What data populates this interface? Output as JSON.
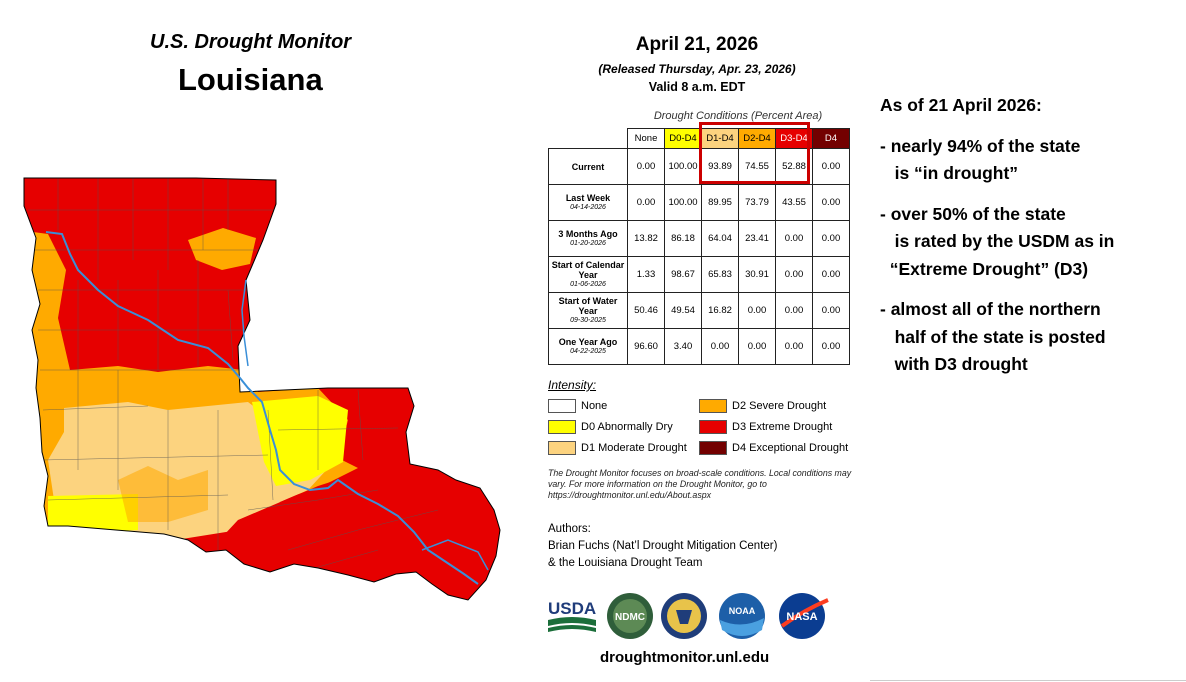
{
  "header": {
    "source": "U.S. Drought Monitor",
    "state": "Louisiana"
  },
  "release": {
    "date": "April 21, 2026",
    "released": "(Released Thursday, Apr. 23, 2026)",
    "valid": "Valid 8 a.m. EDT"
  },
  "table": {
    "title": "Drought Conditions (Percent Area)",
    "columns": [
      "None",
      "D0-D4",
      "D1-D4",
      "D2-D4",
      "D3-D4",
      "D4"
    ],
    "column_colors": [
      "#ffffff",
      "#ffff00",
      "#fcd37f",
      "#ffaa00",
      "#e60000",
      "#730000"
    ],
    "rows": [
      {
        "label": "Current",
        "date": "",
        "values": [
          "0.00",
          "100.00",
          "93.89",
          "74.55",
          "52.88",
          "0.00"
        ]
      },
      {
        "label": "Last Week",
        "date": "04-14-2026",
        "values": [
          "0.00",
          "100.00",
          "89.95",
          "73.79",
          "43.55",
          "0.00"
        ]
      },
      {
        "label": "3 Months Ago",
        "date": "01-20-2026",
        "values": [
          "13.82",
          "86.18",
          "64.04",
          "23.41",
          "0.00",
          "0.00"
        ]
      },
      {
        "label": "Start of Calendar Year",
        "date": "01-06-2026",
        "values": [
          "1.33",
          "98.67",
          "65.83",
          "30.91",
          "0.00",
          "0.00"
        ]
      },
      {
        "label": "Start of Water Year",
        "date": "09-30-2025",
        "values": [
          "50.46",
          "49.54",
          "16.82",
          "0.00",
          "0.00",
          "0.00"
        ]
      },
      {
        "label": "One Year Ago",
        "date": "04-22-2025",
        "values": [
          "96.60",
          "3.40",
          "0.00",
          "0.00",
          "0.00",
          "0.00"
        ]
      }
    ]
  },
  "legend": {
    "title": "Intensity:",
    "items": [
      {
        "label": "None",
        "color": "#ffffff"
      },
      {
        "label": "D0 Abnormally Dry",
        "color": "#ffff00"
      },
      {
        "label": "D1 Moderate Drought",
        "color": "#fcd37f"
      },
      {
        "label": "D2 Severe Drought",
        "color": "#ffaa00"
      },
      {
        "label": "D3 Extreme Drought",
        "color": "#e60000"
      },
      {
        "label": "D4 Exceptional Drought",
        "color": "#730000"
      }
    ]
  },
  "note": "The Drought Monitor focuses on broad-scale conditions. Local conditions may vary. For more information on the Drought Monitor, go to https://droughtmonitor.unl.edu/About.aspx",
  "authors": {
    "label": "Authors:",
    "line1": "Brian Fuchs (Nat’l Drought Mitigation Center)",
    "line2": "& the Louisiana Drought Team"
  },
  "logos": [
    "USDA",
    "NDMC",
    "DOC",
    "NOAA",
    "NASA"
  ],
  "url": "droughtmonitor.unl.edu",
  "notes": {
    "heading": "As of 21 April 2026:",
    "items": [
      {
        "line1": "- nearly 94% of the state",
        "line2": "   is “in drought”"
      },
      {
        "line1": "- over 50% of the state",
        "line2": "   is rated by the USDM as in",
        "line3": "  “Extreme Drought” (D3)"
      },
      {
        "line1": "- almost all of the northern",
        "line2": "   half of the state is posted",
        "line3": "   with D3 drought"
      }
    ]
  }
}
